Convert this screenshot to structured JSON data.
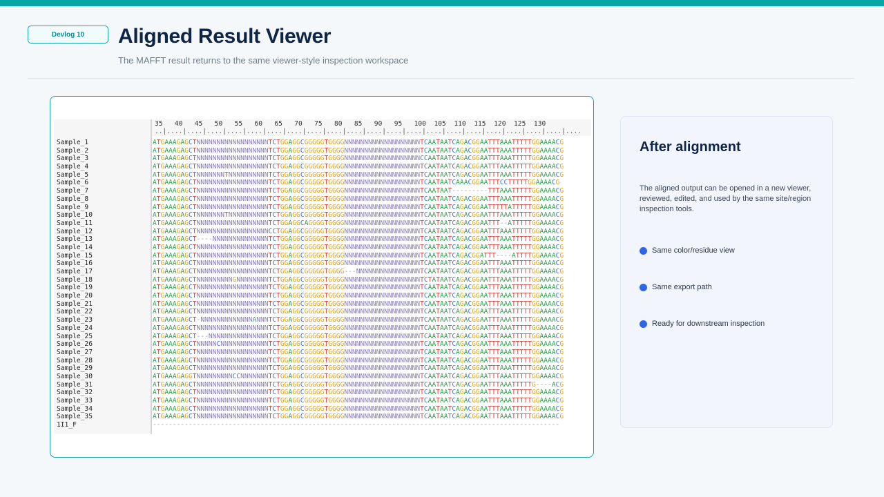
{
  "header": {
    "badge": "Devlog 10",
    "title": "Aligned Result Viewer",
    "subtitle": "The MAFFT result returns to the same viewer-style inspection workspace"
  },
  "viewer": {
    "ruler_numbers": [
      "35",
      "40",
      "45",
      "50",
      "55",
      "60",
      "65",
      "70",
      "75",
      "80",
      "85",
      "90",
      "95",
      "100",
      "105",
      "110",
      "115",
      "120",
      "125",
      "130"
    ],
    "sequences": [
      {
        "name": "Sample_1",
        "seq": "ATGAAAGAGCTNNNNNNNNNNNNNNNNNNTCTGGAGGCGGGGGTGGGGNNNNNNNNNNNNNNNNNNNTCAATAATCAGACGGAATTTAAATTTTTGGAAAACG"
      },
      {
        "name": "Sample_2",
        "seq": "ATGAAAGAGCTNNNNNNNNNNNNNNNNNNTCTGGAGGCGGGGGTGGGGNNNNNNNNNNNNNNNNNNNTCAATAATCAGACGGAATTTAAATTTTTGGAAAACG"
      },
      {
        "name": "Sample_3",
        "seq": "ATGAAAGAGCTNNNNNNNNNNNNNNNNNNTCTGGAGGCGGGGGTGGGGNNNNNNNNNNNNNNNNNNNCCAATAATCAGACGGAATTTAAATTTTTGGAAAACG"
      },
      {
        "name": "Sample_4",
        "seq": "ATGAAAGAGCTNNNNNNNNNNNNNNNNNNTCTGGAGGCGGGGGTGGGGNNNNNNNNNNNNNNNNNNNTCAATAATCAGACGGAATTTAAATTTTTGGAAAACG"
      },
      {
        "name": "Sample_5",
        "seq": "ATGAAAGAGCTNNNNNNNTNNNNNNNNNNTCTGGAGGCGGGGGTGGGGNNNNNNNNNNNNNNNNNNNTCAATAATCAGACGGAATTTAAATTTTTGGAAAACG"
      },
      {
        "name": "Sample_6",
        "seq": "ATGAAAGAGCTNNNNNNNNNNNNNNNNNNTCTGGAGGCGGGGGTGGGGNNNNNNNNNNNNNNNNNNNTCAATAATCAAACGGAATTTCCTTTTTGGAAAACG"
      },
      {
        "name": "Sample_7",
        "seq": "ATGAAAGAGCTNNNNNNNNNNNNNNNNNNTCTGGAGGCGGGGGTGGGGNNNNNNNNNNNNNNNNNNNTCAATAAT---------TTTAAATTTTTGGAAAACG"
      },
      {
        "name": "Sample_8",
        "seq": "ATGAAAGAGCTNNNNNNNNNNNNNNNNNNTCTGGAGGCGGGGGTGGGGNNNNNNNNNNNNNNNNNNNTCAATAATCAGACGGAATTTAAATTTTTGGAAAACG"
      },
      {
        "name": "Sample_9",
        "seq": "ATGAAAGAGCTNNNNNNNNNNNNNNNNNNTCTGGAGGCGGGGGTGGGGNNNNNNNNNNNNNNNNNNNTCAATAATCAGACGGAATTTTTATTTTTGGAAAACG"
      },
      {
        "name": "Sample_10",
        "seq": "ATGAAAGAGCTNNNNNNNTNNNNNNNNNNTCTGGAGGCGGGGGTGGGGNNNNNNNNNNNNNNNNNNNTCAATAATCAGACGGAATTTAAATTTTTGGAAAACG"
      },
      {
        "name": "Sample_11",
        "seq": "ATGAAAGAGCTNNNNNNNNNNNNNNNNNNTCTGGAGGCAGGGGTGGGGNNNNNNNNNNNNNNNNNNNTCAATAATCAGACGGAATTT--ATTTTTGGAAAACG"
      },
      {
        "name": "Sample_12",
        "seq": "ATGAAAGAGCTNNNNNNNNNNNNNNNNNNCCTGGAGGCGGGGGTGGGGNNNNNNNNNNNNNNNNNNNTCAATAATCAGACGGAATTTAAATTTTTGGAAAACG"
      },
      {
        "name": "Sample_13",
        "seq": "ATGAAAGAGCT----NNNNNNNNNNNNNNTCTGGAGGCGGGGGTGGGGNNNNNNNNNNNNNNNNNNNTCAATAATCAGACGGAATTTAAATTTTTGGAAAACG"
      },
      {
        "name": "Sample_14",
        "seq": "ATGAAAGAGCTNNNNNNNNNNNNNNNNNNTCTGGAGGCGGGGGTGGGGNNNNNNNNNNNNNNNNNNNTCAATAATCAGACGGAATTTAAATTTTTGGAAAACG"
      },
      {
        "name": "Sample_15",
        "seq": "ATGAAAGAGCTNNNNNNNNNNNNNNNNNNTCTGGAGGCGGGGGTGGGGNNNNNNNNNNNNNNNNNNNTCAATAATCAGACGGATTT----ATTTTGGAAAACG"
      },
      {
        "name": "Sample_16",
        "seq": "ATGAAAGAGCTNNNNNNNNNNNNNNNNNNTCTGGAGGCGGGGGTGGGGNNNNNNNNNNNNNNNNNNNTCAATAATCAGACGGAATTTAAATTTTTGGAAAACG"
      },
      {
        "name": "Sample_17",
        "seq": "ATGAAAGAGCTNNNNNNNNNNNNNNNNNNTCTGGAGGCGGGGGTGGGG---NNNNNNNNNNNNNNNNTCAATAATCAGACGGAATTTAAATTTTTGGAAAACG"
      },
      {
        "name": "Sample_18",
        "seq": "ATGAAAGAGCTNNNNNNNNNGNNNNNNNNTCTGGAGGCGGGGGTGGGGNNNNNNNNNNNNNNNNNNNTCTATAATCAGACGGAATTTAAATTTTTGGAAAACG"
      },
      {
        "name": "Sample_19",
        "seq": "ATGAAAGAGCTNNNNNNNNNNNNNNNNNNTCTGGAGGCGGGGGTGGGGNNNNNNNNNNNNNNNNNNNTCAATAATCAGACGGAATTTAAATTTTTGGAAAACG"
      },
      {
        "name": "Sample_20",
        "seq": "ATGAAAGAGCTNNNNNNNNNNNNNNNNNNTCTGGAGGCGGGGGTGGGGNNNNNNNNNNNNNNNNNNNTCAATAATCAGACGGAATTTAAATTTTTGGAAAACG"
      },
      {
        "name": "Sample_21",
        "seq": "ATGAAAGAGCTNNNNNNNNNNNNNNNNNNTCTGGAGGCGGGGGTGGGGNNNNNNNNNNNNNNNNNNNTCAATAATCAGACGGAATTTAAATTTTTGGAAAACG"
      },
      {
        "name": "Sample_22",
        "seq": "ATGAAAGAGCTNNNNNNNNNNNNNNNNNNTCTGGAGGCGGGGGTGGGGNNNNNNNNNNNNNNNNNNNTCAATAATCAGACGGAATTTAAATTTTTGGAAAACG"
      },
      {
        "name": "Sample_23",
        "seq": "ATGAAAGAGCT-NNNNNNNNNNNNNANNNTCTGGAGGCGGGGGTGGGGNNNNNNNNNNNNNNNNNNNTCAATAATCAGACGGAATTTAAATTTTTGGAAAACG"
      },
      {
        "name": "Sample_24",
        "seq": "ATGAAAGAGCTNNNNNNNNNNNNNNNNNNTCTGGAGGCGGGGGTGGGGNNNNNNNNNNNNNNNNNNNTCAATAATCAGACGGAATTTAAATTTTTGGAAAACG"
      },
      {
        "name": "Sample_25",
        "seq": "ATGAAAGAGCT---NNNNNNNNNNNNNNNTCTGGAGGCGGGGGTGGGGNNNNNNNNNNNNNNNNNNNTCAATAATCAGACGGAATTTAAATTTTTGGAAAACG"
      },
      {
        "name": "Sample_26",
        "seq": "ATGAAAGAGCTNNNNNCNNNNNNNNNNNNTCTGGAGGCGGGGGTGGGGNNNNNNNNNNNNNNNNNNNTCAATAATCAGACGGAATTTAAATTTTTGGAAAACG"
      },
      {
        "name": "Sample_27",
        "seq": "ATGAAAGAGCTNNNNNNNNNNNNNNNNNNTCTGGAGGCGGGGGTGGGGNNNNNNNNNNNNNNNNNNNTCAATAATCAGACGGAATTTAAATTTTTGGAAAACG"
      },
      {
        "name": "Sample_28",
        "seq": "ATGAAAGAGCTNNNNNNNNNNNNNNNNNNTCTGGAGGCGGGGGTGGGGNNNNNNNNNNNNNNNNNNNTCAATAATCAGACGGAATTTAAATTTTTGGAAAACG"
      },
      {
        "name": "Sample_29",
        "seq": "ATGAAAGAGCTNNNNNNNNNNNNNNNNNNTCTGGAGGCGGGGGTGGGGNNNNNNNNNNNNNNNNNNNTCAATAATCAGACGGAATTTAAATTTTTGGAAAACG"
      },
      {
        "name": "Sample_30",
        "seq": "ATGAAAGAGGTNNNNNNNNNCCNNNNNNNTCTGGAGGCGGGGGTGGGGNNNNNNNNNNNNNNNNNNNTCAATAATCAGACGGAATTTAAATTTTTGGAAAACG"
      },
      {
        "name": "Sample_31",
        "seq": "ATGAAAGAGCTNNNNNNNNNNNNNNNNNNTCTGGAGGCGGGGGTGGGGNNNNNNNNNNNNNNNNNNNTCAATAATCAGACGGAATTTAAATTTTTG----ACG"
      },
      {
        "name": "Sample_32",
        "seq": "ATGAAAGAGCTNNNNNNNNNNNNNNNNNNTCTGGAGGCGGGGGTGGGGNNNNNNNNNNNNNNNNNNNTCAATAATCAGACGGAATTTAAATTTTTGGAAAACG"
      },
      {
        "name": "Sample_33",
        "seq": "ATGAAAGAGCTNNNNNNNNNNNNNNNNNNTCTGGAGGCGGGGGTGGGGNNNNNNNNNNNNNNNNNNNTCAATAATCAGACGGAATTTAAATTTTTGGAAAACG"
      },
      {
        "name": "Sample_34",
        "seq": "ATGAAAGAGCTNNNNNNNNNNNNNNNNNNTCTGGAGGCGGGGGTGGGGNNNNNNNNNNNNNNNNNNNTCAATAATCAGACGGAATTTAAATTTTTGGAAAACG"
      },
      {
        "name": "Sample_35",
        "seq": "ATGAAAGAGCTNNNNNNNNNNNNNNNNNNTCTGGAGGCGGGGGTGGGGNNNNNNNNNNNNNNNNNNNTCAATAATCAGACGGAATTTAAATTTTTGGAAAACG"
      },
      {
        "name": "1I1_F",
        "seq": "------------------------------------------------------------------------------------------------------"
      }
    ]
  },
  "side_panel": {
    "title": "After alignment",
    "body": "The aligned output can be opened in a new viewer, reviewed, edited, and used by the same site/region inspection tools.",
    "bullets": [
      "Same color/residue view",
      "Same export path",
      "Ready for downstream inspection"
    ]
  },
  "colors": {
    "accent": "#0aa5a5",
    "bullet": "#2f66e6",
    "A": "#2f9e4f",
    "T": "#d9403a",
    "G": "#e0a317",
    "C": "#3b6fd6",
    "N": "#8b7fb5"
  }
}
